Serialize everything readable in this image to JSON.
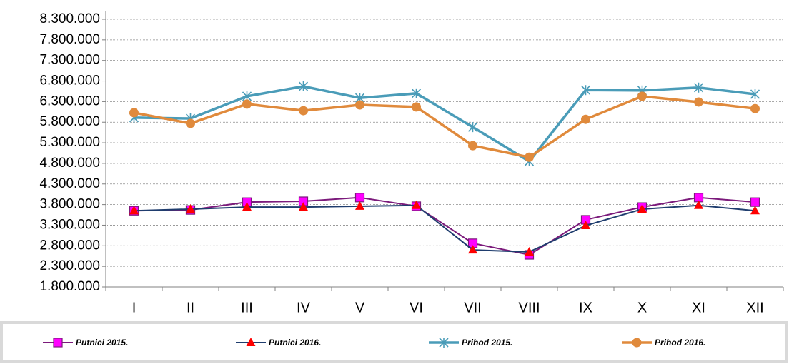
{
  "chart_data": {
    "type": "line",
    "categories": [
      "I",
      "II",
      "III",
      "IV",
      "V",
      "VI",
      "VII",
      "VIII",
      "IX",
      "X",
      "XI",
      "XII"
    ],
    "series": [
      {
        "name": "Putnici 2015.",
        "color": "#7b1a7b",
        "marker": "square",
        "marker_color": "#ff00ff",
        "values": [
          3650000,
          3670000,
          3860000,
          3880000,
          3970000,
          3760000,
          2860000,
          2580000,
          3430000,
          3740000,
          3970000,
          3860000
        ]
      },
      {
        "name": "Putnici 2016.",
        "color": "#1f3d6e",
        "marker": "triangle",
        "marker_color": "#ff0000",
        "values": [
          3650000,
          3690000,
          3740000,
          3740000,
          3760000,
          3780000,
          2700000,
          2650000,
          3290000,
          3690000,
          3780000,
          3650000
        ]
      },
      {
        "name": "Prihod 2015.",
        "color": "#4a9cb8",
        "marker": "star",
        "marker_color": "#4a9cb8",
        "values": [
          5910000,
          5890000,
          6430000,
          6670000,
          6390000,
          6500000,
          5680000,
          4850000,
          6580000,
          6570000,
          6640000,
          6480000
        ]
      },
      {
        "name": "Prihod 2016.",
        "color": "#e08a3c",
        "marker": "circle",
        "marker_color": "#e08a3c",
        "values": [
          6030000,
          5770000,
          6240000,
          6080000,
          6220000,
          6170000,
          5230000,
          4950000,
          5870000,
          6430000,
          6290000,
          6130000
        ]
      }
    ],
    "ylim": [
      1800000,
      8300000
    ],
    "yticks": [
      {
        "value": 1800000,
        "label": "1.800.000"
      },
      {
        "value": 2300000,
        "label": "2.300.000"
      },
      {
        "value": 2800000,
        "label": "2.800.000"
      },
      {
        "value": 3300000,
        "label": "3.300.000"
      },
      {
        "value": 3800000,
        "label": "3.800.000"
      },
      {
        "value": 4300000,
        "label": "4.300.000"
      },
      {
        "value": 4800000,
        "label": "4.800.000"
      },
      {
        "value": 5300000,
        "label": "5.300.000"
      },
      {
        "value": 5800000,
        "label": "5.800.000"
      },
      {
        "value": 6300000,
        "label": "6.300.000"
      },
      {
        "value": 6800000,
        "label": "6.800.000"
      },
      {
        "value": 7300000,
        "label": "7.300.000"
      },
      {
        "value": 7800000,
        "label": "7.800.000"
      },
      {
        "value": 8300000,
        "label": "8.300.000"
      }
    ],
    "grid": true
  }
}
